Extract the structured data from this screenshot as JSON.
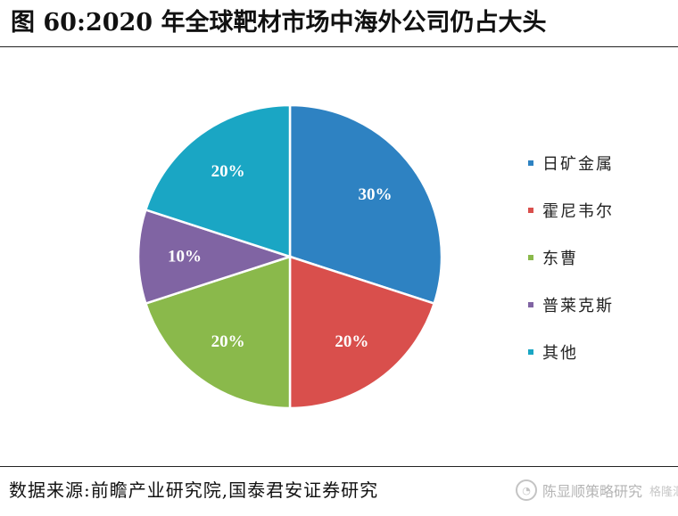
{
  "title": "图 60:2020 年全球靶材市场中海外公司仍占大头",
  "source": "数据来源:前瞻产业研究院,国泰君安证券研究",
  "watermark": {
    "name": "陈显顺策略研究",
    "sub": "格隆汇"
  },
  "chart_data": {
    "type": "pie",
    "title": "",
    "legend_position": "right",
    "slices": [
      {
        "label": "日矿金属",
        "value": 30,
        "display": "30%",
        "color": "#2e82c2"
      },
      {
        "label": "霍尼韦尔",
        "value": 20,
        "display": "20%",
        "color": "#d94f4c"
      },
      {
        "label": "东曹",
        "value": 20,
        "display": "20%",
        "color": "#8ab94b"
      },
      {
        "label": "普莱克斯",
        "value": 10,
        "display": "10%",
        "color": "#8064a3"
      },
      {
        "label": "其他",
        "value": 20,
        "display": "20%",
        "color": "#1aa6c4"
      }
    ]
  }
}
